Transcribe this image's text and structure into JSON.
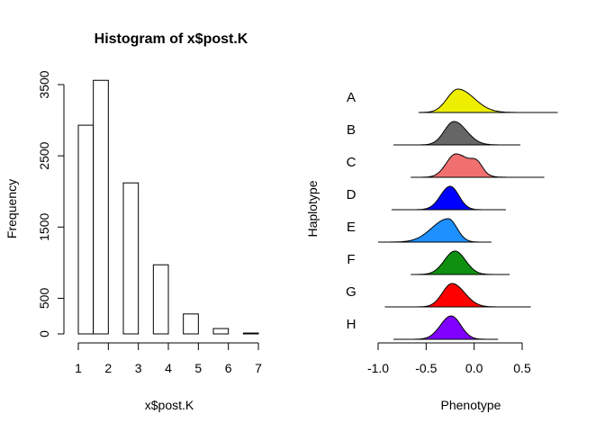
{
  "chart_data": [
    {
      "type": "bar",
      "title": "Histogram of x$post.K",
      "xlabel": "x$post.K",
      "ylabel": "Frequency",
      "bins": [
        {
          "x0": 1.0,
          "x1": 1.5,
          "value": 2930
        },
        {
          "x0": 1.5,
          "x1": 2.0,
          "value": 3560
        },
        {
          "x0": 2.0,
          "x1": 2.5,
          "value": 0
        },
        {
          "x0": 2.5,
          "x1": 3.0,
          "value": 2120
        },
        {
          "x0": 3.0,
          "x1": 3.5,
          "value": 0
        },
        {
          "x0": 3.5,
          "x1": 4.0,
          "value": 970
        },
        {
          "x0": 4.0,
          "x1": 4.5,
          "value": 0
        },
        {
          "x0": 4.5,
          "x1": 5.0,
          "value": 280
        },
        {
          "x0": 5.0,
          "x1": 5.5,
          "value": 0
        },
        {
          "x0": 5.5,
          "x1": 6.0,
          "value": 75
        },
        {
          "x0": 6.0,
          "x1": 6.5,
          "value": 0
        },
        {
          "x0": 6.5,
          "x1": 7.0,
          "value": 12
        }
      ],
      "xlim": [
        1,
        7
      ],
      "ylim": [
        0,
        3500
      ],
      "xticks": [
        "1",
        "2",
        "3",
        "4",
        "5",
        "6",
        "7"
      ],
      "yticks": [
        "0",
        "500",
        "1500",
        "2500",
        "3500"
      ],
      "ytick_values": [
        0,
        500,
        1500,
        2500,
        3500
      ]
    },
    {
      "type": "area",
      "xlabel": "Phenotype",
      "ylabel": "Haplotype",
      "xlim": [
        -1.0,
        0.5
      ],
      "xticks": [
        "-1.0",
        "-0.5",
        "0.0",
        "0.5"
      ],
      "xtick_values": [
        -1.0,
        -0.5,
        0.0,
        0.5
      ],
      "series": [
        {
          "name": "A",
          "color": "#eeee00",
          "range": [
            -0.58,
            0.87
          ],
          "peak": -0.17,
          "sd_left": 0.11,
          "sd_right": 0.17,
          "bump": 0.0
        },
        {
          "name": "B",
          "color": "#666666",
          "range": [
            -0.84,
            0.48
          ],
          "peak": -0.21,
          "sd_left": 0.1,
          "sd_right": 0.13,
          "bump": 0.0
        },
        {
          "name": "C",
          "color": "#f07070",
          "range": [
            -0.66,
            0.73
          ],
          "peak": -0.19,
          "sd_left": 0.1,
          "sd_right": 0.15,
          "bump": 0.4
        },
        {
          "name": "D",
          "color": "#0000ff",
          "range": [
            -0.86,
            0.33
          ],
          "peak": -0.25,
          "sd_left": 0.1,
          "sd_right": 0.09,
          "bump": 0.0
        },
        {
          "name": "E",
          "color": "#1e90ff",
          "range": [
            -1.0,
            0.18
          ],
          "peak": -0.27,
          "sd_left": 0.17,
          "sd_right": 0.09,
          "bump": 0.0
        },
        {
          "name": "F",
          "color": "#109010",
          "range": [
            -0.66,
            0.37
          ],
          "peak": -0.2,
          "sd_left": 0.11,
          "sd_right": 0.11,
          "bump": 0.0
        },
        {
          "name": "G",
          "color": "#ff0000",
          "range": [
            -0.93,
            0.59
          ],
          "peak": -0.23,
          "sd_left": 0.1,
          "sd_right": 0.13,
          "bump": 0.0
        },
        {
          "name": "H",
          "color": "#8000ff",
          "range": [
            -0.84,
            0.25
          ],
          "peak": -0.24,
          "sd_left": 0.11,
          "sd_right": 0.1,
          "bump": 0.0
        }
      ]
    }
  ]
}
